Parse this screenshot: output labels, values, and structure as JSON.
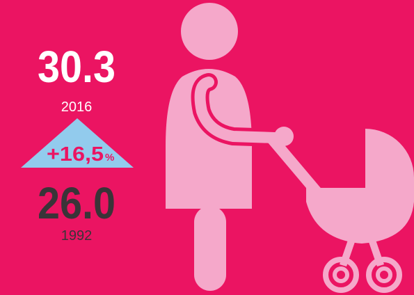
{
  "current": {
    "value": "30.3",
    "year": "2016"
  },
  "change": {
    "value": "+16,5",
    "unit": "%"
  },
  "previous": {
    "value": "26.0",
    "year": "1992"
  }
}
